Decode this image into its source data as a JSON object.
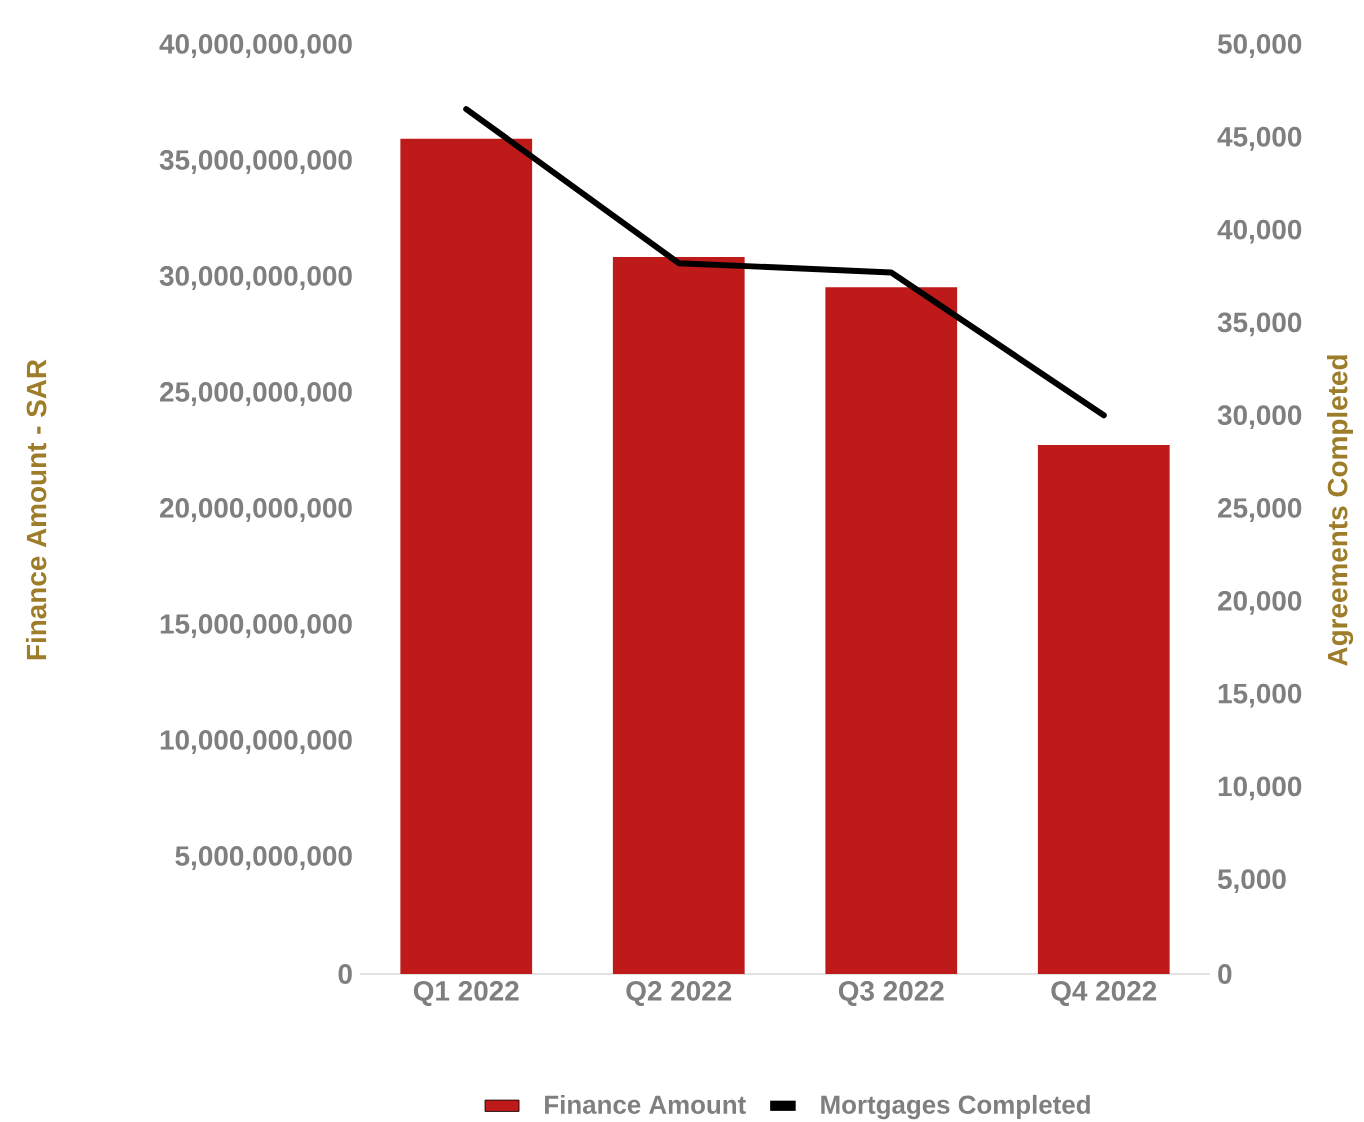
{
  "chart_data": {
    "type": "bar",
    "ylabel": "Finance Amount  - SAR",
    "y2label": "Agreements Completed",
    "categories": [
      "Q1 2022",
      "Q2 2022",
      "Q3 2022",
      "Q4 2022"
    ],
    "series": [
      {
        "name": "Finance Amount",
        "color": "#be1a1a",
        "values": [
          36000000000,
          30900000000,
          29600000000,
          22800000000
        ]
      },
      {
        "name": "Mortgages Completed",
        "type": "line",
        "axis": "y2",
        "color": "#000000",
        "values": [
          46600,
          38300,
          37800,
          30100
        ]
      }
    ],
    "ylim": [
      0,
      40000000000
    ],
    "yticks": [
      0,
      {
        "value": 5000000000,
        "label": "5,000,000,000"
      },
      {
        "value": 10000000000,
        "label": "10,000,000,000"
      },
      {
        "value": 15000000000,
        "label": "15,000,000,000"
      },
      {
        "value": 20000000000,
        "label": "20,000,000,000"
      },
      {
        "value": 25000000000,
        "label": "25,000,000,000"
      },
      {
        "value": 30000000000,
        "label": "30,000,000,000"
      },
      {
        "value": 35000000000,
        "label": "35,000,000,000"
      },
      {
        "value": 40000000000,
        "label": "40,000,000,000"
      }
    ],
    "y2lim": [
      0,
      50000
    ],
    "y2ticks": [
      0,
      {
        "value": 5000,
        "label": "5,000"
      },
      {
        "value": 10000,
        "label": "10,000"
      },
      {
        "value": 15000,
        "label": "15,000"
      },
      {
        "value": 20000,
        "label": "20,000"
      },
      {
        "value": 25000,
        "label": "25,000"
      },
      {
        "value": 30000,
        "label": "30,000"
      },
      {
        "value": 35000,
        "label": "35,000"
      },
      {
        "value": 40000,
        "label": "40,000"
      },
      {
        "value": 45000,
        "label": "45,000"
      },
      {
        "value": 50000,
        "label": "50,000"
      }
    ],
    "legend": "bottom",
    "grid": false
  }
}
